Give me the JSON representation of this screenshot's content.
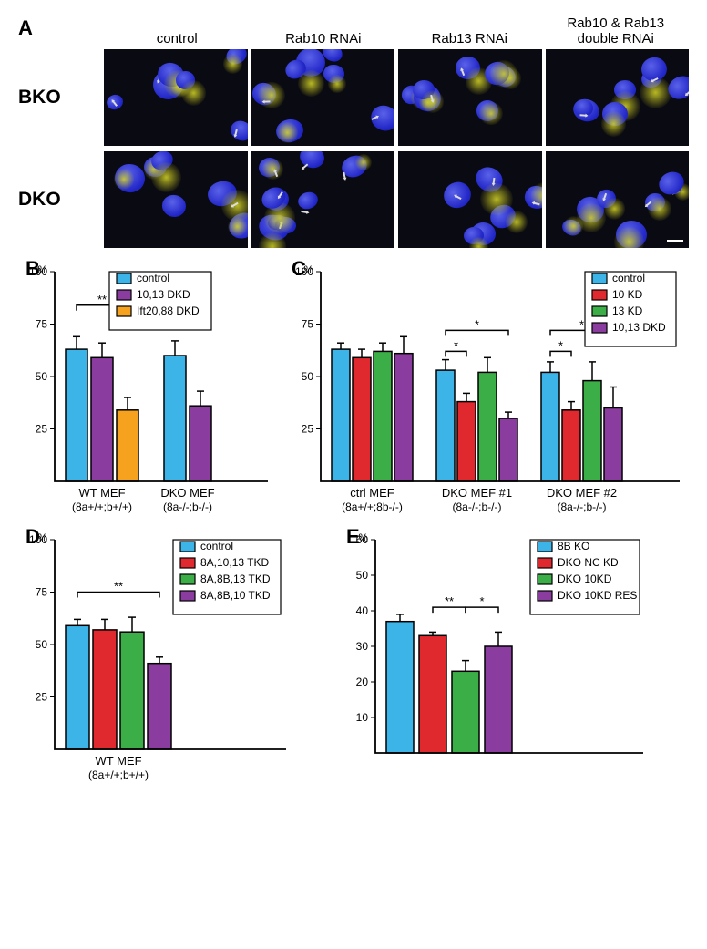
{
  "panelA": {
    "row_labels": [
      "BKO",
      "DKO"
    ],
    "col_labels": [
      "control",
      "Rab10 RNAi",
      "Rab13 RNAi",
      "Rab10 & Rab13\ndouble RNAi"
    ]
  },
  "colors": {
    "control": "#3db4e7",
    "dkd1013": "#8a3d9e",
    "ift": "#f6a21f",
    "kd10": "#e0282f",
    "kd13": "#3cae47"
  },
  "panelB": {
    "ylim": [
      0,
      100
    ],
    "yticks": [
      25,
      50,
      75,
      100
    ],
    "ylabel_pct": "%",
    "legend": [
      {
        "label": "control",
        "color": "#3db4e7"
      },
      {
        "label": "10,13 DKD",
        "color": "#8a3d9e"
      },
      {
        "label": "Ift20,88 DKD",
        "color": "#f6a21f"
      }
    ],
    "groups": [
      {
        "name": "WT MEF",
        "sub": "(8a+/+;b+/+)",
        "bars": [
          {
            "v": 63,
            "e": 6,
            "c": "#3db4e7"
          },
          {
            "v": 59,
            "e": 7,
            "c": "#8a3d9e"
          },
          {
            "v": 34,
            "e": 6,
            "c": "#f6a21f"
          }
        ]
      },
      {
        "name": "DKO MEF",
        "sub": "(8a-/-;b-/-)",
        "bars": [
          {
            "v": 60,
            "e": 7,
            "c": "#3db4e7"
          },
          {
            "v": 36,
            "e": 7,
            "c": "#8a3d9e"
          }
        ]
      }
    ],
    "sig": [
      {
        "group": 0,
        "from": 0,
        "to": 2,
        "y": 84,
        "text": "**"
      },
      {
        "group": 1,
        "from": 0,
        "to": 1,
        "y": 84,
        "text": "**"
      }
    ]
  },
  "panelC": {
    "ylim": [
      0,
      100
    ],
    "yticks": [
      25,
      50,
      75,
      100
    ],
    "ylabel_pct": "%",
    "legend": [
      {
        "label": "control",
        "color": "#3db4e7"
      },
      {
        "label": "10 KD",
        "color": "#e0282f"
      },
      {
        "label": "13 KD",
        "color": "#3cae47"
      },
      {
        "label": "10,13 DKD",
        "color": "#8a3d9e"
      }
    ],
    "groups": [
      {
        "name": "ctrl MEF",
        "sub": "(8a+/+;8b-/-)",
        "bars": [
          {
            "v": 63,
            "e": 3,
            "c": "#3db4e7"
          },
          {
            "v": 59,
            "e": 4,
            "c": "#e0282f"
          },
          {
            "v": 62,
            "e": 4,
            "c": "#3cae47"
          },
          {
            "v": 61,
            "e": 8,
            "c": "#8a3d9e"
          }
        ]
      },
      {
        "name": "DKO MEF #1",
        "sub": "(8a-/-;b-/-)",
        "bars": [
          {
            "v": 53,
            "e": 5,
            "c": "#3db4e7"
          },
          {
            "v": 38,
            "e": 4,
            "c": "#e0282f"
          },
          {
            "v": 52,
            "e": 7,
            "c": "#3cae47"
          },
          {
            "v": 30,
            "e": 3,
            "c": "#8a3d9e"
          }
        ]
      },
      {
        "name": "DKO MEF #2",
        "sub": "(8a-/-;b-/-)",
        "bars": [
          {
            "v": 52,
            "e": 5,
            "c": "#3db4e7"
          },
          {
            "v": 34,
            "e": 4,
            "c": "#e0282f"
          },
          {
            "v": 48,
            "e": 9,
            "c": "#3cae47"
          },
          {
            "v": 35,
            "e": 10,
            "c": "#8a3d9e"
          }
        ]
      }
    ],
    "sig": [
      {
        "group": 1,
        "from": 0,
        "to": 1,
        "y": 62,
        "text": "*"
      },
      {
        "group": 1,
        "from": 0,
        "to": 3,
        "y": 72,
        "text": "*"
      },
      {
        "group": 2,
        "from": 0,
        "to": 1,
        "y": 62,
        "text": "*"
      },
      {
        "group": 2,
        "from": 0,
        "to": 3,
        "y": 72,
        "text": "*"
      }
    ]
  },
  "panelD": {
    "ylim": [
      0,
      100
    ],
    "yticks": [
      25,
      50,
      75,
      100
    ],
    "ylabel_pct": "%",
    "legend": [
      {
        "label": "control",
        "color": "#3db4e7"
      },
      {
        "label": "8A,10,13 TKD",
        "color": "#e0282f"
      },
      {
        "label": "8A,8B,13 TKD",
        "color": "#3cae47"
      },
      {
        "label": "8A,8B,10 TKD",
        "color": "#8a3d9e"
      }
    ],
    "groups": [
      {
        "name": "WT MEF",
        "sub": "(8a+/+;b+/+)",
        "bars": [
          {
            "v": 59,
            "e": 3,
            "c": "#3db4e7"
          },
          {
            "v": 57,
            "e": 5,
            "c": "#e0282f"
          },
          {
            "v": 56,
            "e": 7,
            "c": "#3cae47"
          },
          {
            "v": 41,
            "e": 3,
            "c": "#8a3d9e"
          }
        ]
      }
    ],
    "sig": [
      {
        "group": 0,
        "from": 0,
        "to": 3,
        "y": 75,
        "text": "**"
      }
    ]
  },
  "panelE": {
    "ylim": [
      0,
      60
    ],
    "yticks": [
      10,
      20,
      30,
      40,
      50,
      60
    ],
    "ylabel_pct": "%",
    "legend": [
      {
        "label": "8B KO",
        "color": "#3db4e7"
      },
      {
        "label": "DKO NC KD",
        "color": "#e0282f"
      },
      {
        "label": "DKO 10KD",
        "color": "#3cae47"
      },
      {
        "label": "DKO 10KD RES",
        "color": "#8a3d9e"
      }
    ],
    "groups": [
      {
        "name": "",
        "sub": "",
        "bars": [
          {
            "v": 37,
            "e": 2,
            "c": "#3db4e7"
          },
          {
            "v": 33,
            "e": 1,
            "c": "#e0282f"
          },
          {
            "v": 23,
            "e": 3,
            "c": "#3cae47"
          },
          {
            "v": 30,
            "e": 4,
            "c": "#8a3d9e"
          }
        ]
      }
    ],
    "sig": [
      {
        "group": 0,
        "from": 1,
        "to": 2,
        "y": 41,
        "text": "**"
      },
      {
        "group": 0,
        "from": 2,
        "to": 3,
        "y": 41,
        "text": "*"
      }
    ]
  }
}
